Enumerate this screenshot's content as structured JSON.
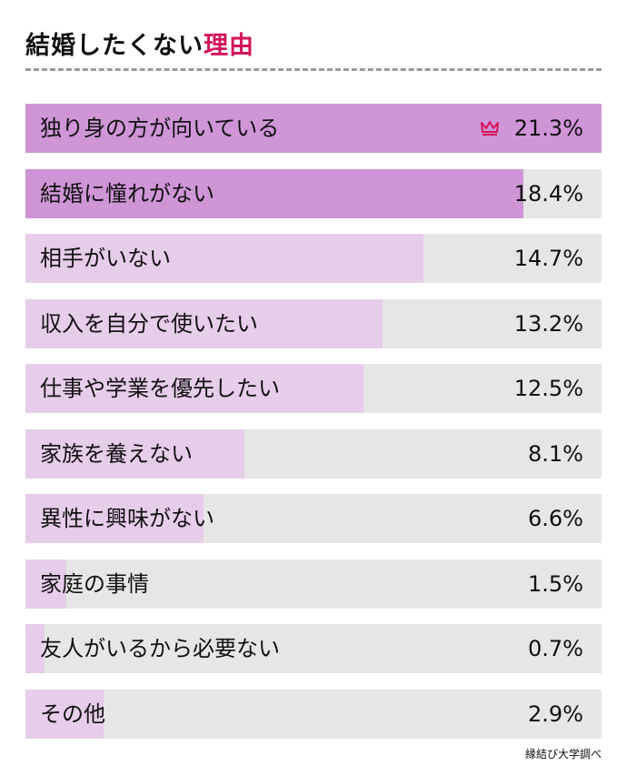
{
  "header": {
    "title_main": "結婚したくない",
    "title_accent": "理由"
  },
  "source": "縁結び大学調べ",
  "colors": {
    "accent": "#d4145a",
    "bar_top": "#cf95d7",
    "bar_other": "#e6cde9",
    "track": "#e6e6e6"
  },
  "top_marker_icon": "crown-icon",
  "chart_data": {
    "type": "bar",
    "orientation": "horizontal",
    "title": "結婚したくない理由",
    "categories": [
      "独り身の方が向いている",
      "結婚に憧れがない",
      "相手がいない",
      "収入を自分で使いたい",
      "仕事や学業を優先したい",
      "家族を養えない",
      "異性に興味がない",
      "家庭の事情",
      "友人がいるから必要ない",
      "その他"
    ],
    "values": [
      21.3,
      18.4,
      14.7,
      13.2,
      12.5,
      8.1,
      6.6,
      1.5,
      0.7,
      2.9
    ],
    "value_labels": [
      "21.3%",
      "18.4%",
      "14.7%",
      "13.2%",
      "12.5%",
      "8.1%",
      "6.6%",
      "1.5%",
      "0.7%",
      "2.9%"
    ],
    "unit": "%",
    "xlim": [
      0,
      21.3
    ],
    "highlighted": [
      0,
      1
    ],
    "grid": false,
    "legend": "none"
  }
}
